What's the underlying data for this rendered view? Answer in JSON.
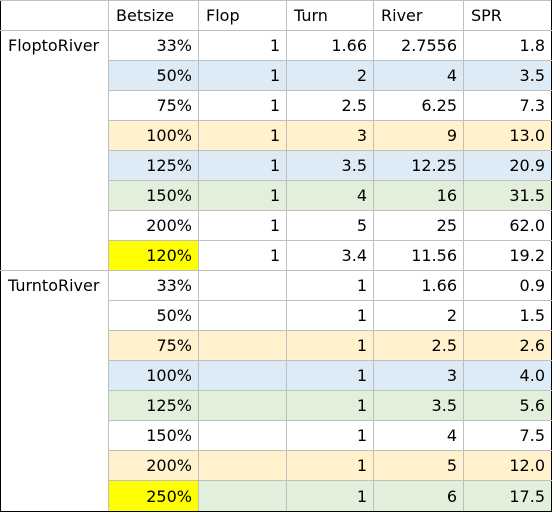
{
  "colors": {
    "blue": "#ddebf7",
    "orange": "#fff2cc",
    "green": "#e2efda",
    "yellow": "#ffff00",
    "white": "#ffffff"
  },
  "headers": [
    "",
    "Betsize",
    "Flop",
    "Turn",
    "River",
    "SPR"
  ],
  "sections": [
    {
      "label": "FloptoRiver",
      "rows": [
        {
          "betsize": "33%",
          "flop": "1",
          "turn": "1.66",
          "river": "2.7556",
          "spr": "1.8",
          "bg": "white",
          "bet_bg": "white"
        },
        {
          "betsize": "50%",
          "flop": "1",
          "turn": "2",
          "river": "4",
          "spr": "3.5",
          "bg": "blue",
          "bet_bg": "blue"
        },
        {
          "betsize": "75%",
          "flop": "1",
          "turn": "2.5",
          "river": "6.25",
          "spr": "7.3",
          "bg": "white",
          "bet_bg": "white"
        },
        {
          "betsize": "100%",
          "flop": "1",
          "turn": "3",
          "river": "9",
          "spr": "13.0",
          "bg": "orange",
          "bet_bg": "orange"
        },
        {
          "betsize": "125%",
          "flop": "1",
          "turn": "3.5",
          "river": "12.25",
          "spr": "20.9",
          "bg": "blue",
          "bet_bg": "blue"
        },
        {
          "betsize": "150%",
          "flop": "1",
          "turn": "4",
          "river": "16",
          "spr": "31.5",
          "bg": "green",
          "bet_bg": "green"
        },
        {
          "betsize": "200%",
          "flop": "1",
          "turn": "5",
          "river": "25",
          "spr": "62.0",
          "bg": "white",
          "bet_bg": "white"
        },
        {
          "betsize": "120%",
          "flop": "1",
          "turn": "3.4",
          "river": "11.56",
          "spr": "19.2",
          "bg": "white",
          "bet_bg": "yellow"
        }
      ]
    },
    {
      "label": "TurntoRiver",
      "rows": [
        {
          "betsize": "33%",
          "flop": "",
          "turn": "1",
          "river": "1.66",
          "spr": "0.9",
          "bg": "white",
          "bet_bg": "white"
        },
        {
          "betsize": "50%",
          "flop": "",
          "turn": "1",
          "river": "2",
          "spr": "1.5",
          "bg": "white",
          "bet_bg": "white"
        },
        {
          "betsize": "75%",
          "flop": "",
          "turn": "1",
          "river": "2.5",
          "spr": "2.6",
          "bg": "orange",
          "bet_bg": "orange"
        },
        {
          "betsize": "100%",
          "flop": "",
          "turn": "1",
          "river": "3",
          "spr": "4.0",
          "bg": "blue",
          "bet_bg": "blue"
        },
        {
          "betsize": "125%",
          "flop": "",
          "turn": "1",
          "river": "3.5",
          "spr": "5.6",
          "bg": "green",
          "bet_bg": "green"
        },
        {
          "betsize": "150%",
          "flop": "",
          "turn": "1",
          "river": "4",
          "spr": "7.5",
          "bg": "white",
          "bet_bg": "white"
        },
        {
          "betsize": "200%",
          "flop": "",
          "turn": "1",
          "river": "5",
          "spr": "12.0",
          "bg": "orange",
          "bet_bg": "orange"
        },
        {
          "betsize": "250%",
          "flop": "",
          "turn": "1",
          "river": "6",
          "spr": "17.5",
          "bg": "green",
          "bet_bg": "yellow"
        }
      ]
    }
  ]
}
